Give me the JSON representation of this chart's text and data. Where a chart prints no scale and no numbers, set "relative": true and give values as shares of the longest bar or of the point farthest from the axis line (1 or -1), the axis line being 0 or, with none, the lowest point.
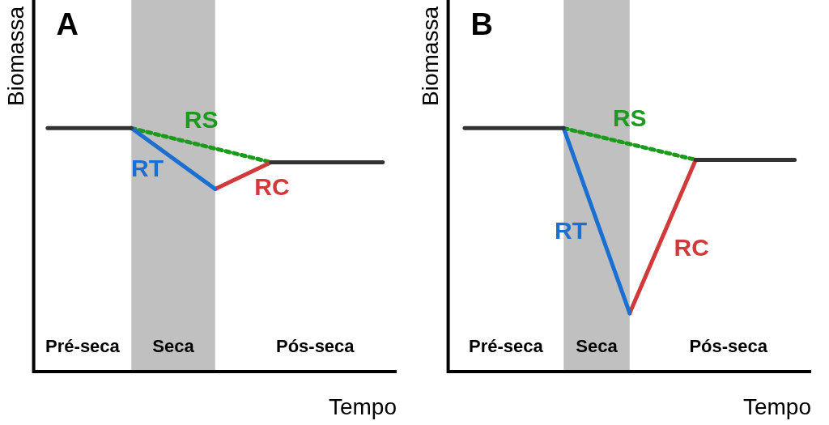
{
  "chart_data": [
    {
      "type": "line",
      "title": "A",
      "relative": true,
      "ylabel": "Biomassa",
      "xlabel": "Tempo",
      "marker": "none",
      "grid": false,
      "legend": false,
      "categories": [
        null,
        null,
        null,
        null,
        null,
        null,
        null,
        null,
        null,
        null,
        null,
        null,
        null
      ],
      "series": [
        {
          "color": "#333333",
          "values": [
            1,
            1,
            1,
            1,
            null,
            null,
            null,
            null,
            0.86,
            0.86,
            0.86,
            0.86,
            0.86
          ]
        },
        {
          "name": "RT",
          "color": "#1a6fd0",
          "values": [
            null,
            null,
            null,
            1,
            null,
            null,
            0.75,
            null,
            null,
            null,
            null,
            null,
            null
          ]
        },
        {
          "name": "RC",
          "color": "#d03a3a",
          "values": [
            null,
            null,
            null,
            null,
            null,
            null,
            0.75,
            null,
            0.86,
            null,
            null,
            null,
            null
          ]
        },
        {
          "name": "RS",
          "color": "#1c9a1c",
          "line_style": "dashed",
          "values": [
            null,
            null,
            null,
            1,
            null,
            null,
            null,
            null,
            0.86,
            null,
            null,
            null,
            null
          ]
        }
      ],
      "annotations": [
        "Pré-seca",
        "Seca",
        "Pós-seca"
      ]
    },
    {
      "type": "line",
      "title": "B",
      "relative": true,
      "ylabel": "Biomassa",
      "xlabel": "Tempo",
      "marker": "none",
      "grid": false,
      "legend": false,
      "categories": [
        null,
        null,
        null,
        null,
        null,
        null,
        null,
        null,
        null,
        null,
        null
      ],
      "series": [
        {
          "color": "#333333",
          "values": [
            1,
            1,
            1,
            1,
            null,
            null,
            null,
            0.87,
            0.87,
            0.87,
            0.87
          ]
        },
        {
          "name": "RT",
          "color": "#1a6fd0",
          "values": [
            null,
            null,
            null,
            1,
            null,
            0.24,
            null,
            null,
            null,
            null,
            null
          ]
        },
        {
          "name": "RC",
          "color": "#d03a3a",
          "values": [
            null,
            null,
            null,
            null,
            null,
            0.24,
            null,
            0.87,
            null,
            null,
            null
          ]
        },
        {
          "name": "RS",
          "color": "#1c9a1c",
          "line_style": "dashed",
          "values": [
            null,
            null,
            null,
            1,
            null,
            null,
            null,
            0.87,
            null,
            null,
            null
          ]
        }
      ],
      "annotations": [
        "Pré-seca",
        "Seca",
        "Pós-seca"
      ]
    }
  ]
}
